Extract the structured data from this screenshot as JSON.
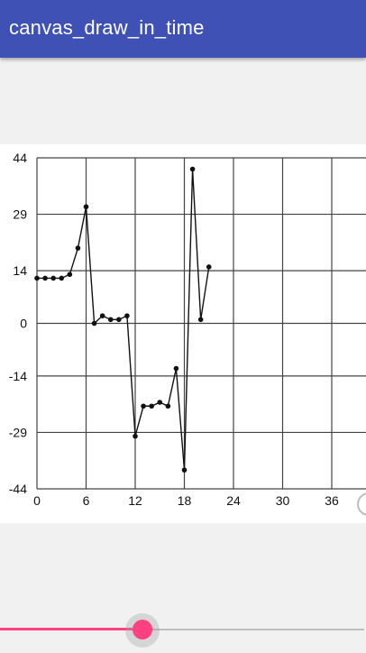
{
  "app_bar": {
    "title": "canvas_draw_in_time"
  },
  "colors": {
    "app_bar": "#3f51b5",
    "accent": "#ff4081",
    "grid": "#444444",
    "line": "#111111"
  },
  "slider": {
    "value_fraction": 0.39
  },
  "chart_data": {
    "type": "line",
    "grid": true,
    "xlim": [
      0,
      40
    ],
    "ylim": [
      -44,
      44
    ],
    "x_ticks": [
      0,
      6,
      12,
      18,
      24,
      30,
      36
    ],
    "y_ticks": [
      44,
      29,
      14,
      0,
      -14,
      -29,
      -44
    ],
    "series": [
      {
        "x": [
          0,
          1,
          2,
          3,
          4,
          5,
          6,
          7,
          8,
          9,
          10,
          11,
          12,
          13,
          14,
          15,
          16,
          17,
          18,
          19,
          20,
          21
        ],
        "y": [
          12,
          12,
          12,
          12,
          13,
          20,
          31,
          0,
          2,
          1,
          1,
          2,
          -30,
          -22,
          -22,
          -21,
          -22,
          -12,
          -39,
          41,
          1,
          15
        ]
      }
    ]
  }
}
